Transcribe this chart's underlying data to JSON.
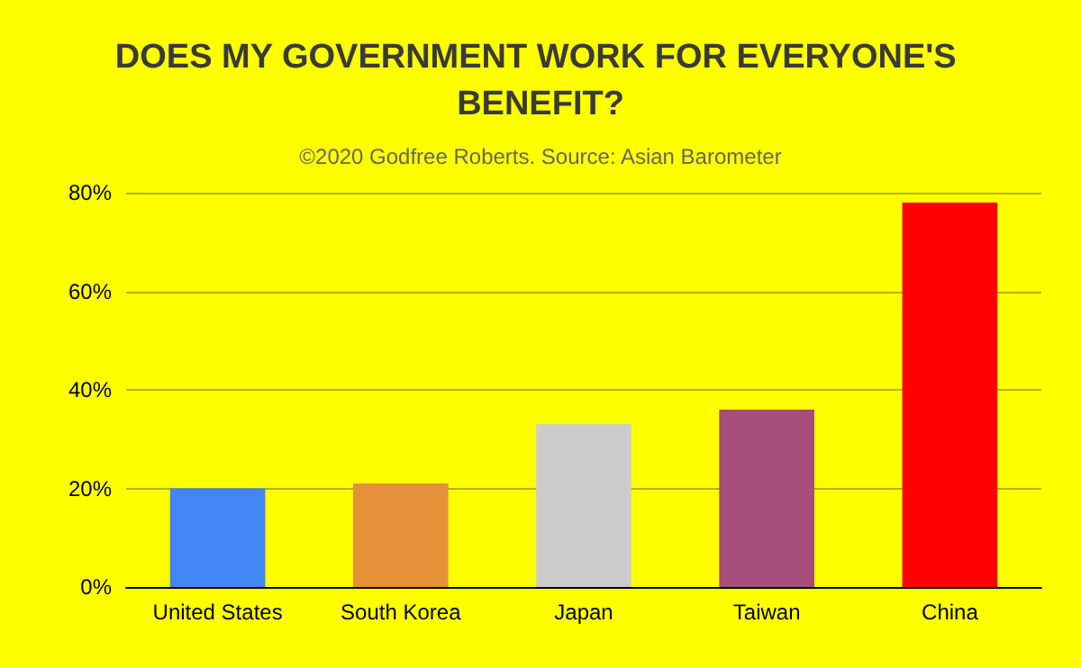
{
  "chart_data": {
    "type": "bar",
    "title": "DOES MY GOVERNMENT WORK FOR EVERYONE'S BENEFIT?",
    "subtitle": "©2020 Godfree Roberts. Source: Asian Barometer",
    "categories": [
      "United States",
      "South Korea",
      "Japan",
      "Taiwan",
      "China"
    ],
    "values": [
      20,
      21,
      33,
      36,
      78
    ],
    "colors": [
      "#4285f4",
      "#e69138",
      "#cccccc",
      "#a64d79",
      "#ff0000"
    ],
    "ylim": [
      0,
      80
    ],
    "yticks": [
      {
        "value": 0,
        "label": "0%"
      },
      {
        "value": 20,
        "label": "20%"
      },
      {
        "value": 40,
        "label": "40%"
      },
      {
        "value": 60,
        "label": "60%"
      },
      {
        "value": 80,
        "label": "80%"
      }
    ],
    "grid": true
  }
}
